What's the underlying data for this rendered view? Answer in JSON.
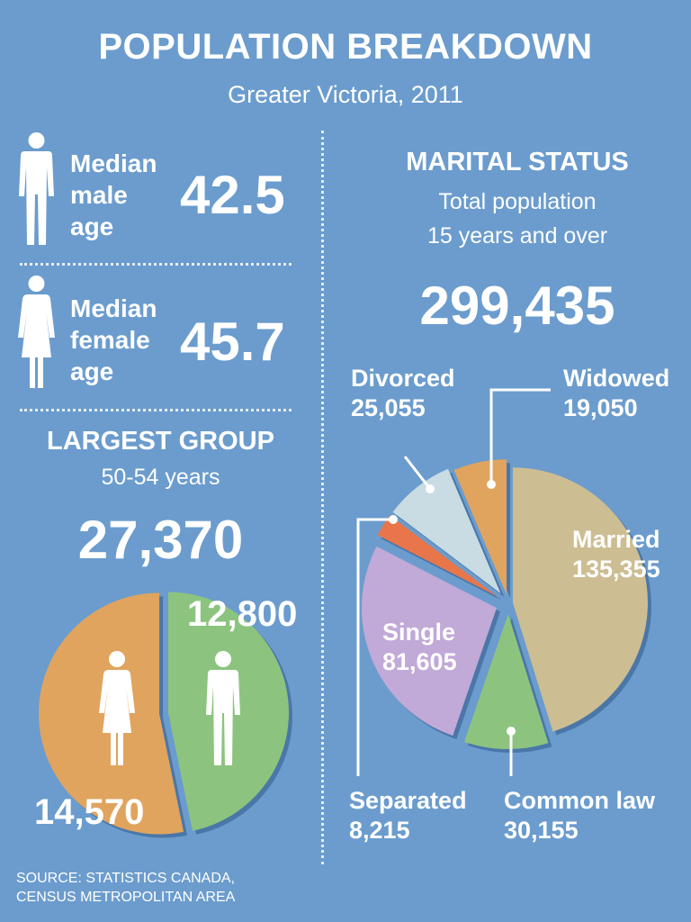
{
  "title": "POPULATION BREAKDOWN",
  "subtitle": "Greater Victoria, 2011",
  "median_male": {
    "label": "Median\nmale\nage",
    "value": "42.5"
  },
  "median_female": {
    "label": "Median\nfemale\nage",
    "value": "45.7"
  },
  "largest_group": {
    "heading": "LARGEST GROUP",
    "range": "50-54 years",
    "total": "27,370"
  },
  "marital": {
    "heading": "MARITAL STATUS",
    "sub1": "Total population",
    "sub2": "15 years and over",
    "total": "299,435"
  },
  "source": {
    "line1": "SOURCE: STATISTICS CANADA,",
    "line2": "CENSUS METROPOLITAN AREA"
  },
  "colors": {
    "background": "#6b9ccd",
    "female": "#e0a45e",
    "male": "#8cc47f",
    "married": "#cdbd92",
    "common_law": "#8cc47f",
    "single": "#c1a9d8",
    "separated": "#e8764a",
    "divorced": "#c9dbe3",
    "widowed": "#e0a45e"
  },
  "chart_data": [
    {
      "type": "pie",
      "series": [
        {
          "values": [
            12800,
            14570
          ]
        }
      ],
      "labels": [
        "12,800",
        "14,570"
      ],
      "categories": [
        "male-icon",
        "female-icon"
      ]
    },
    {
      "type": "pie",
      "categories": [
        "Married",
        "Common law",
        "Single",
        "Separated",
        "Divorced",
        "Widowed"
      ],
      "values": [
        135355,
        30155,
        81605,
        8215,
        25055,
        19050
      ],
      "labels": [
        "135,355",
        "30,155",
        "81,605",
        "8,215",
        "25,055",
        "19,050"
      ]
    }
  ]
}
